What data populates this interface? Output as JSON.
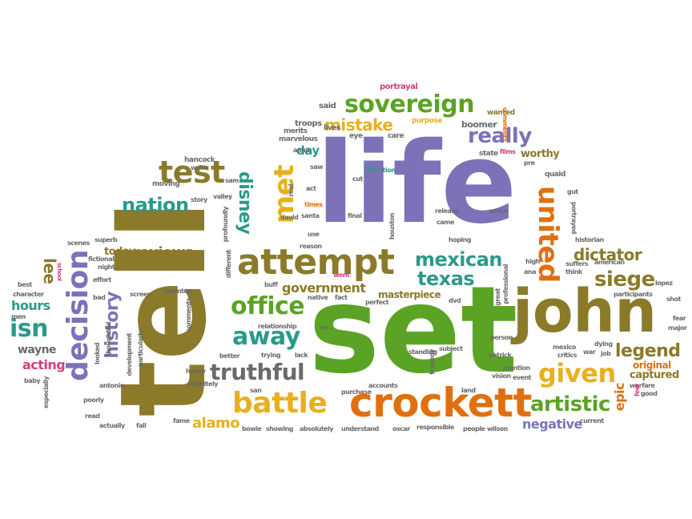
{
  "colors": {
    "purple": "#7b72b8",
    "olive": "#8a7a2a",
    "orange": "#e0700f",
    "green": "#5ba325",
    "teal": "#2a9a8a",
    "gold": "#e8b020",
    "pink": "#d43f7a",
    "grey": "#6a6a6a",
    "darkbrown": "#6b4e1a"
  },
  "words": {
    "tell": "tell",
    "set": "set",
    "life": "life",
    "john": "john",
    "crockett": "crockett",
    "attempt": "attempt",
    "decision": "decision",
    "test": "test",
    "met": "met",
    "united": "united",
    "sovereign": "sovereign",
    "battle": "battle",
    "office": "office",
    "away": "away",
    "truthful": "truthful",
    "given": "given",
    "artistic": "artistic",
    "mexican": "mexican",
    "texas": "texas",
    "siege": "siege",
    "really": "really",
    "nation": "nation",
    "history": "history",
    "disney": "disney",
    "isn": "isn",
    "legend": "legend",
    "dictator": "dictator",
    "alamo": "alamo",
    "mistake": "mistake",
    "reviews": "reviews",
    "government": "government",
    "hours": "hours",
    "lee": "lee",
    "acting": "acting",
    "wayne": "wayne",
    "negative": "negative",
    "epic": "epic",
    "captured": "captured",
    "original": "original",
    "masterpiece": "masterpiece",
    "day": "day",
    "worthy": "worthy",
    "today": "today",
    "portrayal": "portrayal",
    "said": "said",
    "wanted": "wanted",
    "boomer": "boomer",
    "purpose": "purpose",
    "comments": "comments",
    "troops": "troops",
    "merits": "merits",
    "marvelous": "marvelous",
    "eye": "eye",
    "lives": "lives",
    "care": "care",
    "anna": "anna",
    "state": "state",
    "films": "films",
    "pre": "pre",
    "hancock": "hancock",
    "write": "write",
    "saw": "saw",
    "moving": "moving",
    "sam": "sam",
    "attention": "attention",
    "cut": "cut",
    "quaid": "quaid",
    "gut": "gut",
    "story": "story",
    "valley": "valley",
    "act": "act",
    "times": "times",
    "santa": "santa",
    "david": "david",
    "release": "release",
    "sense": "sense",
    "final": "final",
    "came": "came",
    "houston": "houston",
    "portrayed": "portrayed",
    "use": "use",
    "reason": "reason",
    "hoping": "hoping",
    "historian": "historian",
    "scenes": "scenes",
    "superb": "superb",
    "fictional": "fictional",
    "night": "night",
    "went": "went",
    "high": "high",
    "suffers": "suffers",
    "american": "american",
    "school": "school",
    "effort": "effort",
    "ana": "ana",
    "think": "think",
    "best": "best",
    "buff": "buff",
    "character": "character",
    "men": "men",
    "screen": "screen",
    "thornton": "thornton",
    "native": "native",
    "fact": "fact",
    "perfect": "perfect",
    "dvd": "dvd",
    "great": "great",
    "participants": "participants",
    "lopez": "lopez",
    "shot": "shot",
    "bad": "bad",
    "fear": "fear",
    "major": "major",
    "relationship": "relationship",
    "ve": "ve",
    "subject": "subject",
    "person": "person",
    "mexico": "mexico",
    "dying": "dying",
    "job": "job",
    "critics": "critics",
    "war": "war",
    "better": "better",
    "trying": "trying",
    "lack": "lack",
    "standing": "standing",
    "patrick": "patrick",
    "heavy": "heavy",
    "particularly": "particularly",
    "development": "development",
    "thoughtful": "thoughtful",
    "looked": "looked",
    "tragedy": "tragedy",
    "vision": "vision",
    "event": "event",
    "mention": "mention",
    "warfare": "warfare",
    "good": "good",
    "feel": "feel",
    "baby": "baby",
    "antonio": "antonio",
    "definitely": "definitely",
    "san": "san",
    "purchase": "purchase",
    "accounts": "accounts",
    "land": "land",
    "poorly": "poorly",
    "especially": "especially",
    "read": "read",
    "fame": "fame",
    "current": "current",
    "actually": "actually",
    "fall": "fall",
    "bowie": "bowie",
    "showing": "showing",
    "absolutely": "absolutely",
    "understand": "understand",
    "oscar": "oscar",
    "responsible": "responsible",
    "people": "people",
    "wilson": "wilson",
    "different": "different",
    "profoundly": "profoundly",
    "real": "real",
    "professional": "professional"
  }
}
